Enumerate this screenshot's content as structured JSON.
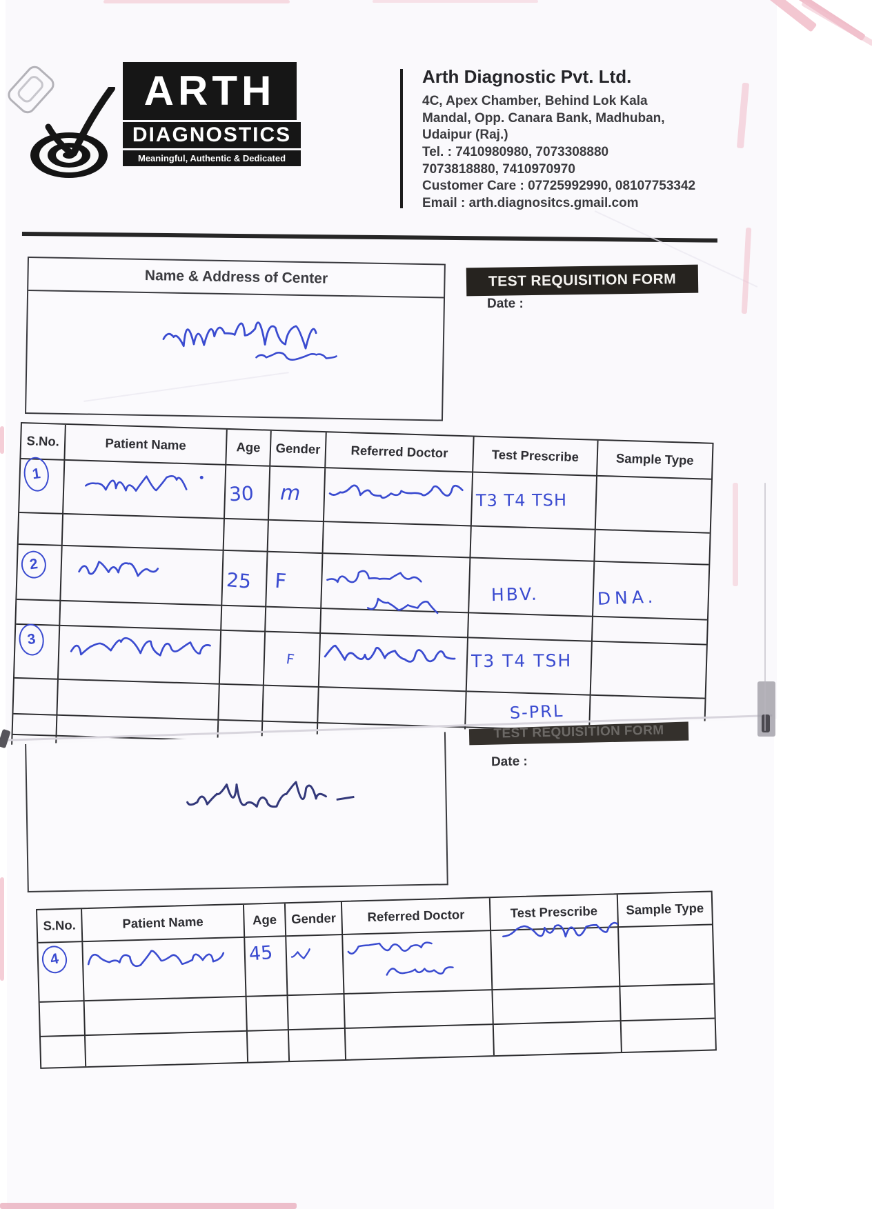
{
  "document": {
    "logo": {
      "brand": "ARTH",
      "division": "DIAGNOSTICS",
      "tagline": "Meaningful, Authentic & Dedicated"
    },
    "company": {
      "name": "Arth Diagnostic Pvt. Ltd.",
      "address_line1": "4C, Apex Chamber, Behind Lok Kala",
      "address_line2": "Mandal, Opp. Canara Bank, Madhuban,",
      "address_line3": "Udaipur (Raj.)",
      "tel_line1": "Tel. : 7410980980, 7073308880",
      "tel_line2": "7073818880, 7410970970",
      "customer_care": "Customer Care : 07725992990, 08107753342",
      "email": "Email : arth.diagnositcs.gmail.com"
    },
    "page1": {
      "center_box_title": "Name & Address of Center",
      "center_box_handwriting": "आण्डर",
      "form_title": "TEST REQUISITION FORM",
      "date_label": "Date :",
      "date_value": "",
      "table": {
        "headers": [
          "S.No.",
          "Patient Name",
          "Age",
          "Gender",
          "Referred Doctor",
          "Test Prescribe",
          "Sample Type"
        ],
        "row1": {
          "sno": "1",
          "patient_name": "दुर्गा",
          "age": "30",
          "gender": "m",
          "referred_doctor": "एलके गोयल",
          "test_prescribe": "T3 T4 TSH",
          "sample_type": ""
        },
        "row2": {
          "sno": "2",
          "patient_name": "पूजा",
          "age": "25",
          "gender": "F",
          "referred_doctor": "राजीव आमेण",
          "test_prescribe": "HBV.",
          "sample_type": "DNA."
        },
        "row3": {
          "sno": "3",
          "patient_name": "हंसा कुमारी",
          "age": "",
          "gender": "F",
          "referred_doctor": "एलके गोयल",
          "test_prescribe": "T3 T4 TSH",
          "test_prescribe_line2": "S-PRL",
          "sample_type": ""
        }
      }
    },
    "page2": {
      "form_title": "TEST REQUISITION FORM",
      "date_label": "Date :",
      "date_value": "",
      "center_box_handwriting": "आण्डर -",
      "table": {
        "headers": [
          "S.No.",
          "Patient Name",
          "Age",
          "Gender",
          "Referred Doctor",
          "Test Prescribe",
          "Sample Type"
        ],
        "row1": {
          "sno": "4",
          "patient_name": "छोगा लाल",
          "age": "45",
          "gender": "m",
          "referred_doctor": "राजीव आमेण",
          "test_prescribe": "लिपिड प्रोफाइल",
          "sample_type": ""
        }
      }
    }
  }
}
